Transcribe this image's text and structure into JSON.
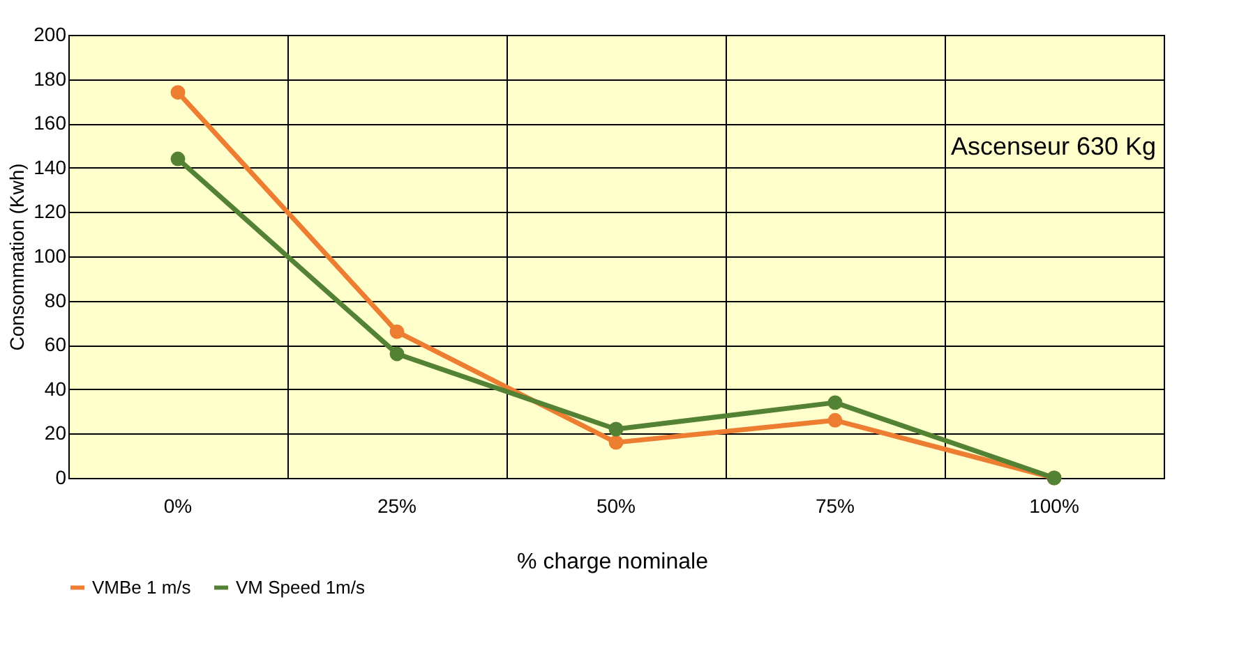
{
  "chart_data": {
    "type": "line",
    "xlabel": "% charge nominale",
    "ylabel": "Consommation (Kwh)",
    "categories": [
      "0%",
      "25%",
      "50%",
      "75%",
      "100%"
    ],
    "series": [
      {
        "name": "VMBe 1 m/s",
        "color": "#ed7d31",
        "values": [
          174,
          66,
          16,
          26,
          0
        ]
      },
      {
        "name": "VM Speed 1m/s",
        "color": "#548235",
        "values": [
          144,
          56,
          22,
          34,
          0
        ]
      }
    ],
    "ylim": [
      0,
      200
    ],
    "yticks": [
      0,
      20,
      40,
      60,
      80,
      100,
      120,
      140,
      160,
      180,
      200
    ],
    "grid": true,
    "legend": "bottom",
    "marker": "circle",
    "line_style": "solid",
    "annotations": [
      "Ascenseur 630 Kg"
    ]
  }
}
